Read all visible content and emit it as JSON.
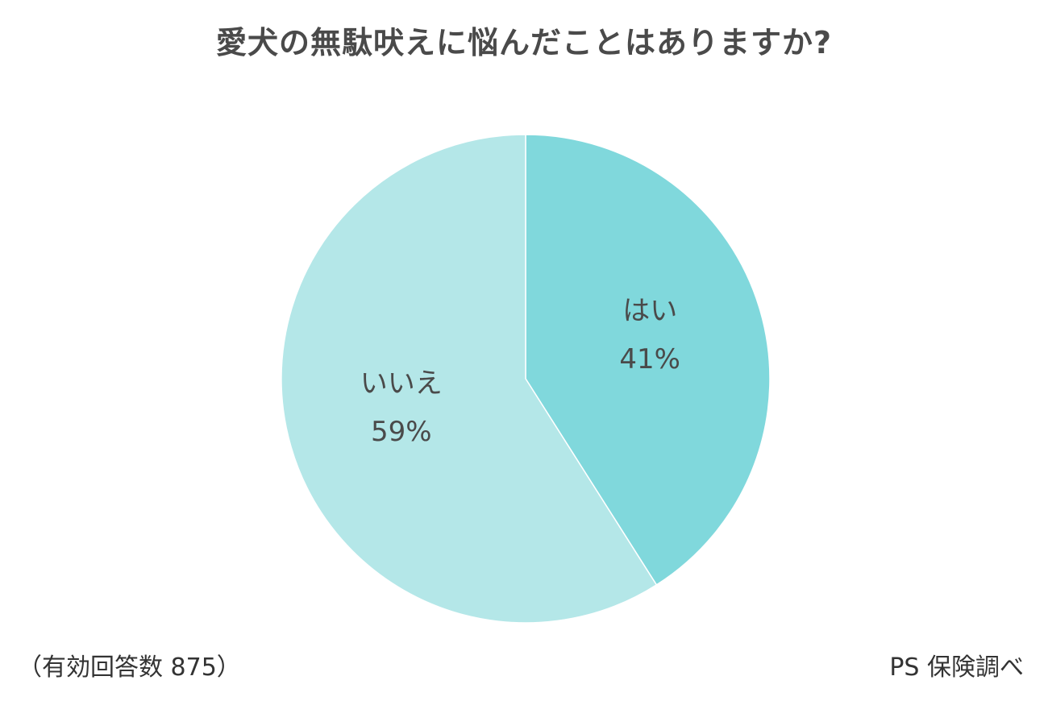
{
  "header": {
    "title": "愛犬の無駄吠えに悩んだことはありますか?"
  },
  "footer": {
    "sample_note": "（有効回答数 875）",
    "source": "PS 保険調べ"
  },
  "chart_data": {
    "type": "pie",
    "title": "愛犬の無駄吠えに悩んだことはありますか?",
    "categories": [
      "はい",
      "いいえ"
    ],
    "values": [
      41,
      59
    ],
    "value_labels": [
      "41%",
      "59%"
    ],
    "colors": [
      "#80d8dc",
      "#b4e7e8"
    ],
    "legend": "none",
    "start": "top",
    "direction": "clockwise"
  }
}
